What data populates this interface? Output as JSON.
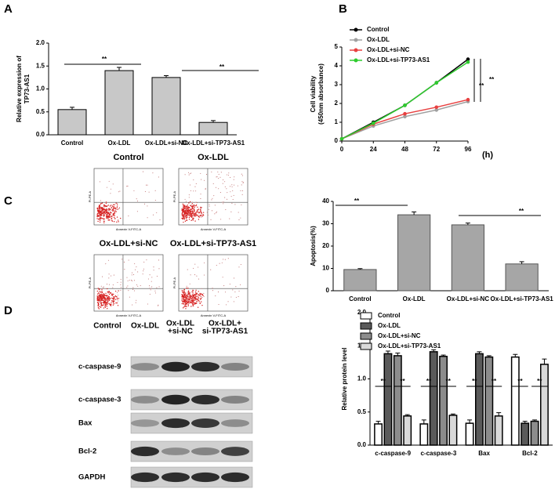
{
  "chart_data": [
    {
      "type": "bar",
      "panel": "A",
      "ylabel": [
        "Relative expression of",
        "TP73-AS1"
      ],
      "categories": [
        "Control",
        "Ox-LDL",
        "Ox-LDL+si-NC",
        "Ox-LDL+si-TP73-AS1"
      ],
      "values": [
        0.55,
        1.4,
        1.25,
        0.27
      ],
      "errors": [
        0.05,
        0.07,
        0.04,
        0.04
      ],
      "color": "#c8c8c8",
      "edgecolor": "#000000",
      "ylim": [
        0,
        2
      ],
      "yticks": [
        {
          "value": 0,
          "label": "0.0"
        },
        {
          "value": 0.5,
          "label": "0.5"
        },
        {
          "value": 1,
          "label": "1.0"
        },
        {
          "value": 1.5,
          "label": "1.5"
        },
        {
          "value": 2,
          "label": "2.0"
        }
      ],
      "annotations": [
        "**",
        "**"
      ]
    },
    {
      "type": "line",
      "panel": "B",
      "ylabel": [
        "Cell viability",
        "(450nm absorbance)"
      ],
      "xlabel": "(h)",
      "x": [
        0,
        24,
        48,
        72,
        96
      ],
      "series": [
        {
          "name": "Control",
          "color": "#000000",
          "values": [
            0.12,
            1.0,
            1.9,
            3.1,
            4.35
          ]
        },
        {
          "name": "Ox-LDL",
          "color": "#a0a0a0",
          "values": [
            0.12,
            0.8,
            1.3,
            1.65,
            2.1
          ]
        },
        {
          "name": "Ox-LDL+si-NC",
          "color": "#e84040",
          "values": [
            0.12,
            0.9,
            1.45,
            1.8,
            2.2
          ]
        },
        {
          "name": "Ox-LDL+si-TP73-AS1",
          "color": "#2ecc2e",
          "values": [
            0.12,
            0.95,
            1.9,
            3.1,
            4.2
          ]
        }
      ],
      "xlim": [
        0,
        96
      ],
      "xticks": [
        0,
        24,
        48,
        72,
        96
      ],
      "ylim": [
        0,
        5
      ],
      "yticks": [
        0,
        1,
        2,
        3,
        4,
        5
      ],
      "annotations": [
        "**",
        "**"
      ]
    },
    {
      "type": "bar",
      "panel": "C",
      "ylabel": [
        "Apoptosis(%)"
      ],
      "categories": [
        "Control",
        "Ox-LDL",
        "Ox-LDL+si-NC",
        "Ox-LDL+si-TP73-AS1"
      ],
      "values": [
        9.5,
        34,
        29.5,
        12
      ],
      "errors": [
        0.4,
        1.3,
        0.8,
        1.0
      ],
      "color": "#a6a6a6",
      "edgecolor": "#555555",
      "ylim": [
        0,
        40
      ],
      "yticks": [
        0,
        10,
        20,
        30,
        40
      ],
      "annotations": [
        "**",
        "**"
      ]
    },
    {
      "type": "bar",
      "panel": "D",
      "ylabel": [
        "Relative protein level"
      ],
      "categories": [
        "c-caspase-9",
        "c-caspase-3",
        "Bax",
        "Bcl-2"
      ],
      "series": [
        {
          "name": "Control",
          "color": "#ffffff",
          "values": [
            0.32,
            0.32,
            0.33,
            1.33
          ],
          "errors": [
            0.04,
            0.06,
            0.05,
            0.04
          ]
        },
        {
          "name": "Ox-LDL",
          "color": "#5a5a5a",
          "values": [
            1.38,
            1.41,
            1.38,
            0.33
          ],
          "errors": [
            0.04,
            0.03,
            0.03,
            0.03
          ]
        },
        {
          "name": "Ox-LDL+si-NC",
          "color": "#8c8c8c",
          "values": [
            1.35,
            1.34,
            1.33,
            0.36
          ],
          "errors": [
            0.04,
            0.02,
            0.02,
            0.02
          ]
        },
        {
          "name": "Ox-LDL+si-TP73-AS1",
          "color": "#d9d9d9",
          "values": [
            0.44,
            0.45,
            0.44,
            1.22
          ],
          "errors": [
            0.02,
            0.02,
            0.05,
            0.08
          ]
        }
      ],
      "edgecolor": "#000000",
      "ylim": [
        0,
        2
      ],
      "yticks": [
        {
          "value": 0,
          "label": "0.0"
        },
        {
          "value": 0.5,
          "label": "0.5"
        },
        {
          "value": 1,
          "label": "1.0"
        },
        {
          "value": 1.5,
          "label": "1.5"
        },
        {
          "value": 2,
          "label": "2.0"
        }
      ],
      "annotations": [
        "**",
        "**",
        "**",
        "**",
        "**",
        "**",
        "**",
        "**"
      ]
    }
  ],
  "flow_cytometry": {
    "plots": [
      {
        "title": "Control",
        "xlabel": "Annexin V-FITC-A",
        "ylabel": "PI-PE-A"
      },
      {
        "title": "Ox-LDL",
        "xlabel": "Annexin V-FITC-A",
        "ylabel": "PI-PE-A"
      },
      {
        "title": "Ox-LDL+si-NC",
        "xlabel": "Annexin V-FITC-A",
        "ylabel": "PI-PE-A"
      },
      {
        "title": "Ox-LDL+si-TP73-AS1",
        "xlabel": "Annexin V-FITC-A",
        "ylabel": "PI-PE-A"
      }
    ]
  },
  "western_blot": {
    "lanes": [
      [
        "Control"
      ],
      [
        "Ox-LDL"
      ],
      [
        "Ox-LDL",
        "+si-NC"
      ],
      [
        "Ox-LDL+",
        "si-TP73-AS1"
      ]
    ],
    "rows": [
      "c-caspase-9",
      "c-caspase-3",
      "Bax",
      "Bcl-2",
      "GAPDH"
    ]
  }
}
